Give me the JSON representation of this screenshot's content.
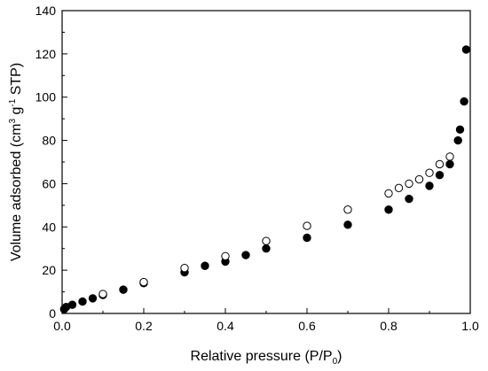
{
  "chart_data": {
    "type": "scatter",
    "xlabel": "Relative pressure (P/P0)",
    "ylabel": "Volume adsorbed (cm3 g-1 STP)",
    "xlabel_parts": {
      "main": "Relative pressure (P/P",
      "sub": "0",
      "tail": ")"
    },
    "ylabel_parts": {
      "a": "Volume adsorbed (cm",
      "sup1": "3",
      "b": " g",
      "sup2": "-1",
      "c": " STP)"
    },
    "xlim": [
      0.0,
      1.0
    ],
    "ylim": [
      0,
      140
    ],
    "xticks": [
      0.0,
      0.2,
      0.4,
      0.6,
      0.8,
      1.0
    ],
    "xtick_labels": [
      "0.0",
      "0.2",
      "0.4",
      "0.6",
      "0.8",
      "1.0"
    ],
    "yticks": [
      0,
      20,
      40,
      60,
      80,
      100,
      120,
      140
    ],
    "ytick_labels": [
      "0",
      "20",
      "40",
      "60",
      "80",
      "100",
      "120",
      "140"
    ],
    "grid": false,
    "legend": "none",
    "series": [
      {
        "marker": "filled-circle",
        "color": "#000000",
        "points": [
          [
            0.005,
            2.0
          ],
          [
            0.01,
            3.0
          ],
          [
            0.025,
            4.0
          ],
          [
            0.05,
            5.5
          ],
          [
            0.075,
            7.0
          ],
          [
            0.1,
            8.5
          ],
          [
            0.15,
            11.0
          ],
          [
            0.2,
            14.0
          ],
          [
            0.3,
            19.0
          ],
          [
            0.35,
            22.0
          ],
          [
            0.4,
            24.0
          ],
          [
            0.45,
            27.0
          ],
          [
            0.5,
            30.0
          ],
          [
            0.6,
            35.0
          ],
          [
            0.7,
            41.0
          ],
          [
            0.8,
            48.0
          ],
          [
            0.85,
            53.0
          ],
          [
            0.9,
            59.0
          ],
          [
            0.925,
            64.0
          ],
          [
            0.95,
            69.0
          ],
          [
            0.97,
            80.0
          ],
          [
            0.975,
            85.0
          ],
          [
            0.985,
            98.0
          ],
          [
            0.99,
            122.0
          ]
        ]
      },
      {
        "marker": "open-circle",
        "color": "#000000",
        "points": [
          [
            0.1,
            9.0
          ],
          [
            0.2,
            14.5
          ],
          [
            0.3,
            21.0
          ],
          [
            0.4,
            26.5
          ],
          [
            0.5,
            33.5
          ],
          [
            0.6,
            40.5
          ],
          [
            0.7,
            48.0
          ],
          [
            0.8,
            55.5
          ],
          [
            0.825,
            58.0
          ],
          [
            0.85,
            60.0
          ],
          [
            0.875,
            62.0
          ],
          [
            0.9,
            65.0
          ],
          [
            0.925,
            69.0
          ],
          [
            0.95,
            72.5
          ]
        ]
      }
    ]
  }
}
